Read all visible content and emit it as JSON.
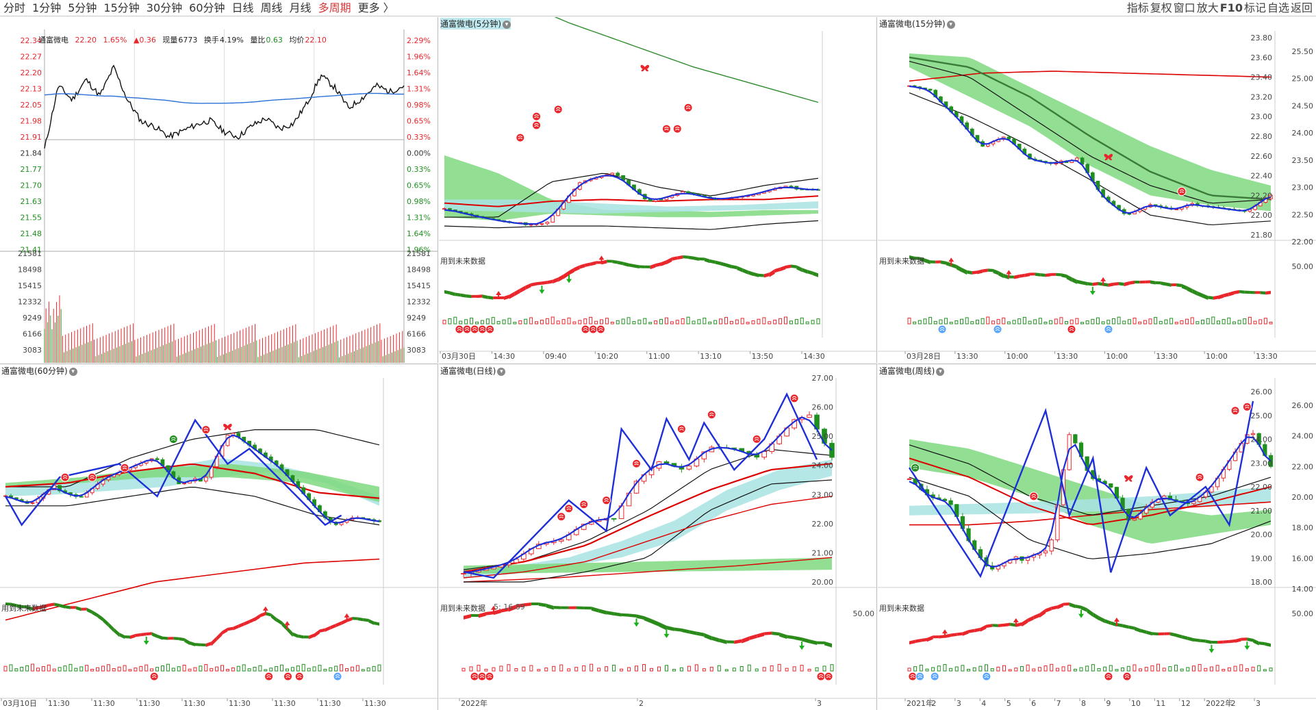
{
  "toolbar": {
    "items": [
      "分时",
      "1分钟",
      "5分钟",
      "15分钟",
      "30分钟",
      "60分钟",
      "日线",
      "周线",
      "月线",
      "多周期",
      "更多 〉"
    ],
    "active_index": 9,
    "right_items": [
      "指标",
      "复权",
      "窗口",
      "放大",
      "F10",
      "标记",
      "自选",
      "返回"
    ]
  },
  "colors": {
    "up": "#e8262b",
    "down": "#1f8f1f",
    "avg": "#2a6fd6",
    "zigzag": "#1d2fd8",
    "cloud_green": "#7fd87f",
    "cloud_cyan": "#a9e3e3"
  },
  "quote": {
    "name": "通富微电",
    "price": "22.20",
    "pct": "1.65%",
    "change": "▲0.36",
    "volume_label": "现量",
    "volume": "6773",
    "turnover_label": "换手",
    "turnover": "4.19%",
    "ratio_label": "量比",
    "ratio": "0.63",
    "avg_label": "均价",
    "avg": "22.10",
    "left_axis": [
      "22.34",
      "22.27",
      "22.20",
      "22.13",
      "22.05",
      "21.98",
      "21.91",
      "21.84",
      "21.77",
      "21.70",
      "21.63",
      "21.55",
      "21.48",
      "21.41",
      "21581",
      "18498",
      "15415",
      "12332",
      "9249",
      "6166",
      "3083"
    ],
    "right_axis": [
      "2.29%",
      "1.96%",
      "1.64%",
      "1.31%",
      "0.98%",
      "0.65%",
      "0.33%",
      "0.00%",
      "0.33%",
      "0.65%",
      "0.98%",
      "1.31%",
      "1.64%",
      "1.96%",
      "21581",
      "18498",
      "15415",
      "12332",
      "9249",
      "6166",
      "3083"
    ]
  },
  "panels": {
    "m5": {
      "title": "通富微电(5分钟)",
      "future_label": "用到未来数据",
      "x_labels": [
        "03月30日",
        "14:30",
        "09:40",
        "10:20",
        "11:00",
        "13:10",
        "13:50",
        "14:30"
      ]
    },
    "m15": {
      "title": "通富微电(15分钟)",
      "future_label": "用到未来数据",
      "y_labels": [
        "23.80",
        "23.60",
        "23.40",
        "23.20",
        "23.00",
        "22.80",
        "22.60",
        "22.40",
        "22.20",
        "22.00",
        "21.80"
      ],
      "y2_labels": [
        "25.50",
        "25.00",
        "24.50",
        "24.00",
        "23.50",
        "23.00",
        "22.50",
        "22.00"
      ],
      "ind_label": "50.00",
      "x_labels": [
        "03月28日",
        "13:30",
        "10:00",
        "13:30",
        "10:00",
        "13:30",
        "10:00",
        "13:30"
      ]
    },
    "m60": {
      "title": "通富微电(60分钟)",
      "future_label": "用到未来数据",
      "x_labels": [
        "03月10日",
        "11:30",
        "11:30",
        "11:30",
        "11:30",
        "11:30",
        "11:30",
        "11:30",
        "11:30"
      ]
    },
    "day": {
      "title": "通富微电(日线)",
      "future_label": "用到未来数据",
      "extra_label": "5: 16.89",
      "y_labels": [
        "27.00",
        "26.00",
        "25.00",
        "24.00",
        "23.00",
        "22.00",
        "21.00",
        "20.00"
      ],
      "ind_label": "50.00",
      "x_labels": [
        "2022年",
        "2",
        "3"
      ]
    },
    "week": {
      "title": "通富微电(周线)",
      "future_label": "用到未来数据",
      "y_labels": [
        "26.00",
        "25.00",
        "24.00",
        "23.00",
        "22.00",
        "21.00",
        "20.00",
        "19.00",
        "18.00"
      ],
      "y2_labels": [
        "26.00",
        "24.00",
        "22.00",
        "20.00",
        "18.00",
        "16.00",
        "14.00"
      ],
      "ind_label": "50.00",
      "x_labels": [
        "2021年",
        "2",
        "3",
        "4",
        "5",
        "6",
        "7",
        "8",
        "9",
        "10",
        "11",
        "12",
        "2022年",
        "2",
        "3"
      ]
    }
  }
}
